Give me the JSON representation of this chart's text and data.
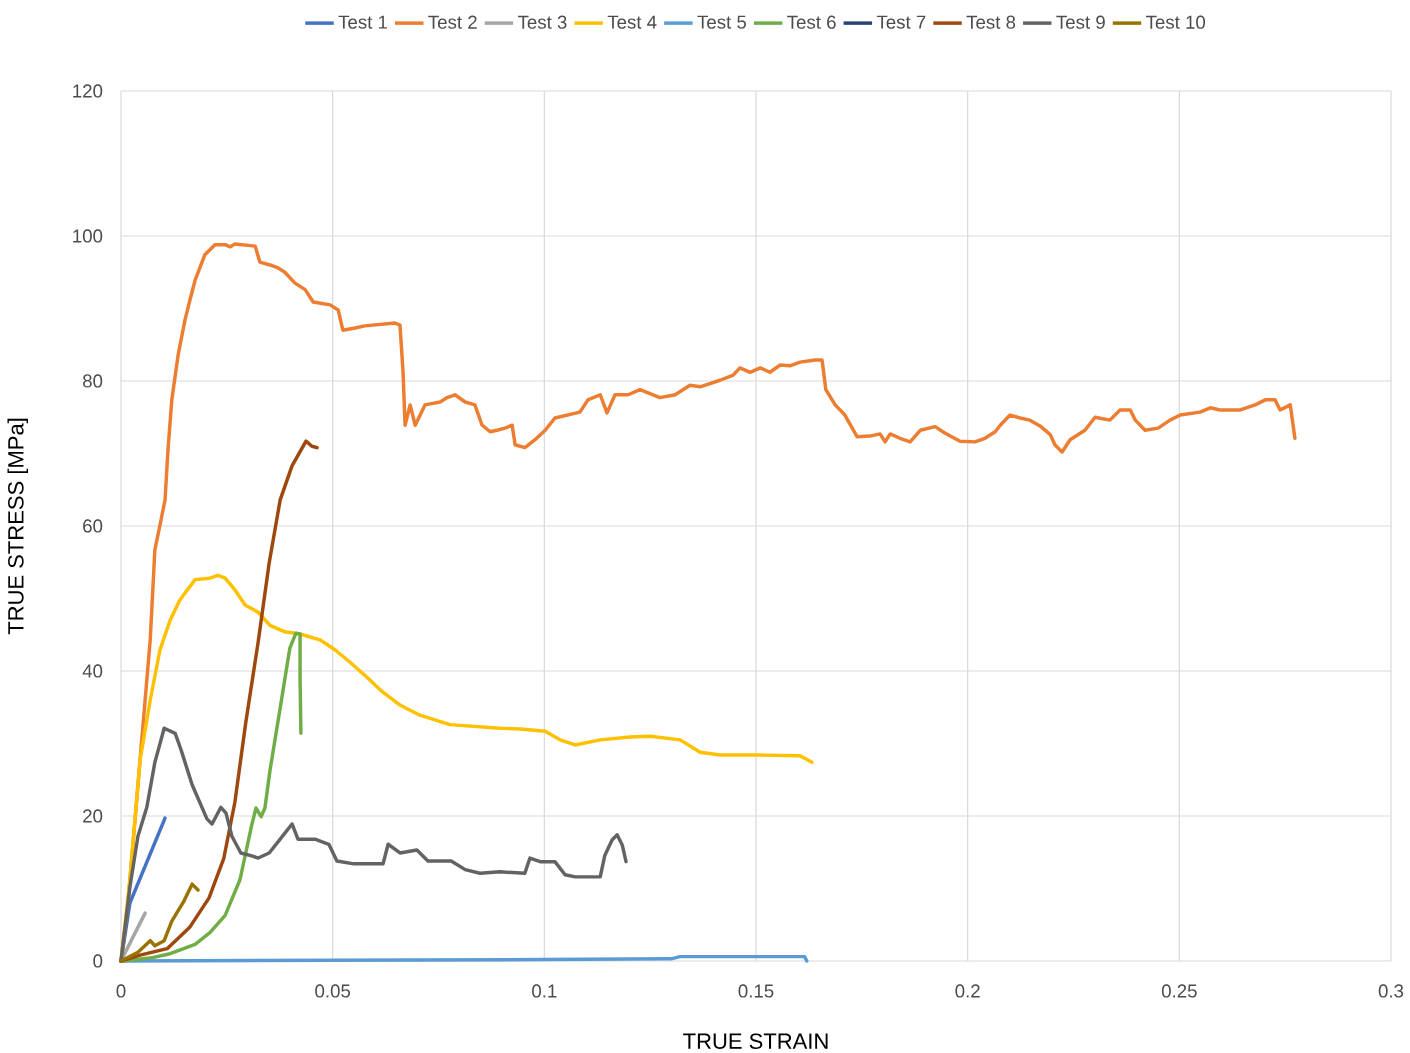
{
  "chart_data": {
    "type": "line",
    "xlabel": "TRUE STRAIN",
    "ylabel": "TRUE STRESS [MPa]",
    "xlim": [
      0,
      0.3
    ],
    "ylim": [
      0,
      120
    ],
    "xticks": [
      0,
      0.05,
      0.1,
      0.15,
      0.2,
      0.25,
      0.3
    ],
    "yticks": [
      0,
      20,
      40,
      60,
      80,
      100,
      120
    ],
    "grid": true,
    "legend": "top",
    "series": [
      {
        "name": "Test 1",
        "color": "#4472c4",
        "x": [
          0,
          0.0021,
          0.0104
        ],
        "values": [
          0,
          8,
          19.7
        ]
      },
      {
        "name": "Test 2",
        "color": "#ed7d31",
        "x": [
          0,
          0.0017,
          0.0045,
          0.0069,
          0.008,
          0.0092,
          0.0104,
          0.0111,
          0.012,
          0.0135,
          0.0151,
          0.0163,
          0.0175,
          0.0198,
          0.0222,
          0.0246,
          0.0258,
          0.0269,
          0.0317,
          0.0328,
          0.0352,
          0.0371,
          0.0387,
          0.0411,
          0.0435,
          0.0454,
          0.0494,
          0.0513,
          0.0524,
          0.0553,
          0.0576,
          0.0647,
          0.0659,
          0.0666,
          0.0671,
          0.0683,
          0.0695,
          0.0718,
          0.0754,
          0.077,
          0.0789,
          0.0813,
          0.0836,
          0.0853,
          0.0872,
          0.0888,
          0.0907,
          0.0924,
          0.0931,
          0.0954,
          0.0978,
          0.1002,
          0.1025,
          0.1084,
          0.1103,
          0.1132,
          0.1148,
          0.1167,
          0.1198,
          0.1226,
          0.1273,
          0.1309,
          0.1344,
          0.1368,
          0.1415,
          0.1446,
          0.1462,
          0.1486,
          0.151,
          0.1533,
          0.1557,
          0.158,
          0.1604,
          0.164,
          0.1656,
          0.1665,
          0.1687,
          0.171,
          0.1739,
          0.1769,
          0.1793,
          0.1805,
          0.1817,
          0.184,
          0.1864,
          0.1888,
          0.1923,
          0.1947,
          0.1982,
          0.2017,
          0.2041,
          0.2065,
          0.2077,
          0.21,
          0.2124,
          0.2147,
          0.2171,
          0.2195,
          0.2206,
          0.2223,
          0.2242,
          0.2277,
          0.2301,
          0.2336,
          0.236,
          0.2384,
          0.2396,
          0.2419,
          0.245,
          0.2478,
          0.2502,
          0.2549,
          0.2573,
          0.2596,
          0.2644,
          0.2679,
          0.2703,
          0.2726,
          0.2738,
          0.2762,
          0.2773
        ],
        "values": [
          0,
          8.4,
          27.7,
          44.3,
          56.7,
          60.1,
          63.6,
          70.5,
          77.4,
          83.6,
          88.4,
          91.2,
          93.9,
          97.4,
          98.8,
          98.8,
          98.5,
          98.9,
          98.6,
          96.4,
          96,
          95.6,
          95,
          93.5,
          92.6,
          90.9,
          90.5,
          89.8,
          87,
          87.3,
          87.6,
          88,
          87.7,
          81.5,
          73.9,
          76.7,
          73.9,
          76.7,
          77.1,
          77.7,
          78.1,
          77.1,
          76.7,
          73.9,
          73,
          73.2,
          73.5,
          73.9,
          71.2,
          70.8,
          71.9,
          73.2,
          74.9,
          75.7,
          77.4,
          78.1,
          75.6,
          78.1,
          78.1,
          78.8,
          77.7,
          78.1,
          79.4,
          79.2,
          80.1,
          80.8,
          81.8,
          81.2,
          81.8,
          81.2,
          82.2,
          82.1,
          82.6,
          82.9,
          82.9,
          78.8,
          76.7,
          75.3,
          72.3,
          72.4,
          72.7,
          71.6,
          72.7,
          72.1,
          71.6,
          73.2,
          73.7,
          72.8,
          71.7,
          71.6,
          72.1,
          73,
          73.9,
          75.3,
          74.9,
          74.6,
          73.8,
          72.6,
          71.2,
          70.2,
          71.9,
          73.2,
          75,
          74.6,
          76,
          76,
          74.6,
          73.2,
          73.5,
          74.6,
          75.3,
          75.7,
          76.3,
          76,
          76,
          76.7,
          77.4,
          77.4,
          76,
          76.7,
          72.1
        ]
      },
      {
        "name": "Test 3",
        "color": "#a5a5a5",
        "x": [
          0,
          0.003,
          0.0057
        ],
        "values": [
          0,
          3.5,
          6.6
        ]
      },
      {
        "name": "Test 4",
        "color": "#ffc000",
        "x": [
          0,
          0.0021,
          0.0045,
          0.0069,
          0.0092,
          0.0116,
          0.0139,
          0.0175,
          0.021,
          0.0229,
          0.0246,
          0.0269,
          0.0293,
          0.0324,
          0.0352,
          0.0387,
          0.0423,
          0.047,
          0.0506,
          0.0541,
          0.0576,
          0.0612,
          0.0659,
          0.0706,
          0.0777,
          0.0895,
          0.0943,
          0.1002,
          0.1037,
          0.1073,
          0.1132,
          0.1202,
          0.125,
          0.1321,
          0.1368,
          0.1415,
          0.151,
          0.1604,
          0.1632
        ],
        "values": [
          0,
          11.2,
          27.7,
          36,
          42.9,
          47,
          49.8,
          52.6,
          52.8,
          53.2,
          52.8,
          51.2,
          49.1,
          48.1,
          46.3,
          45.4,
          45.1,
          44.3,
          42.9,
          41.2,
          39.4,
          37.4,
          35.3,
          33.9,
          32.6,
          32.1,
          32,
          31.7,
          30.5,
          29.8,
          30.5,
          30.9,
          31,
          30.5,
          28.8,
          28.4,
          28.4,
          28.3,
          27.4
        ]
      },
      {
        "name": "Test 5",
        "color": "#5b9bd5",
        "x": [
          0,
          0.05,
          0.1,
          0.13,
          0.132,
          0.16,
          0.1615,
          0.162
        ],
        "values": [
          0,
          0.1,
          0.2,
          0.3,
          0.6,
          0.6,
          0.6,
          0
        ]
      },
      {
        "name": "Test 6",
        "color": "#70ad47",
        "x": [
          0,
          0.0069,
          0.0116,
          0.0175,
          0.021,
          0.0246,
          0.0281,
          0.0309,
          0.0319,
          0.0331,
          0.034,
          0.0352,
          0.0376,
          0.0399,
          0.0413,
          0.0423,
          0.0423,
          0.0425
        ],
        "values": [
          0,
          0.4,
          1,
          2.3,
          3.9,
          6.3,
          11.2,
          18.8,
          21.1,
          19.9,
          21.1,
          26.3,
          34.9,
          43.2,
          45.2,
          45.1,
          38.8,
          31.4
        ]
      },
      {
        "name": "Test 7",
        "color": "#264478"
      },
      {
        "name": "Test 8",
        "color": "#9e480e",
        "x": [
          0,
          0.0045,
          0.0109,
          0.0163,
          0.0208,
          0.0243,
          0.0269,
          0.0295,
          0.0324,
          0.035,
          0.0376,
          0.0404,
          0.0437,
          0.0451,
          0.0463
        ],
        "values": [
          0,
          0.8,
          1.7,
          4.7,
          8.7,
          14.2,
          21.9,
          33,
          44,
          54.9,
          63.6,
          68.3,
          71.7,
          71,
          70.8
        ]
      },
      {
        "name": "Test 9",
        "color": "#636363",
        "x": [
          0,
          0.0021,
          0.004,
          0.0061,
          0.008,
          0.0102,
          0.0128,
          0.0142,
          0.0168,
          0.0203,
          0.0215,
          0.0236,
          0.0248,
          0.0262,
          0.0283,
          0.0309,
          0.0324,
          0.035,
          0.0376,
          0.0404,
          0.0418,
          0.0458,
          0.0491,
          0.051,
          0.055,
          0.0619,
          0.0631,
          0.0659,
          0.0699,
          0.0725,
          0.078,
          0.0813,
          0.0848,
          0.0895,
          0.0954,
          0.0966,
          0.099,
          0.1025,
          0.1049,
          0.1073,
          0.1132,
          0.1143,
          0.116,
          0.1172,
          0.1184,
          0.1193
        ],
        "values": [
          0,
          10.2,
          17.2,
          21.2,
          27.4,
          32.1,
          31.4,
          29.1,
          24.3,
          19.6,
          18.9,
          21.2,
          20.4,
          17.2,
          14.9,
          14.5,
          14.2,
          14.9,
          16.8,
          18.9,
          16.8,
          16.8,
          16.1,
          13.8,
          13.4,
          13.4,
          16.1,
          14.9,
          15.3,
          13.8,
          13.8,
          12.6,
          12.1,
          12.3,
          12.1,
          14.2,
          13.7,
          13.7,
          11.9,
          11.6,
          11.6,
          14.6,
          16.7,
          17.4,
          16,
          13.7
        ]
      },
      {
        "name": "Test 10",
        "color": "#997300",
        "x": [
          0,
          0.004,
          0.0069,
          0.008,
          0.0102,
          0.012,
          0.0149,
          0.0168,
          0.0182
        ],
        "values": [
          0,
          1.2,
          2.8,
          2.1,
          2.8,
          5.5,
          8.3,
          10.6,
          9.8
        ]
      }
    ]
  }
}
